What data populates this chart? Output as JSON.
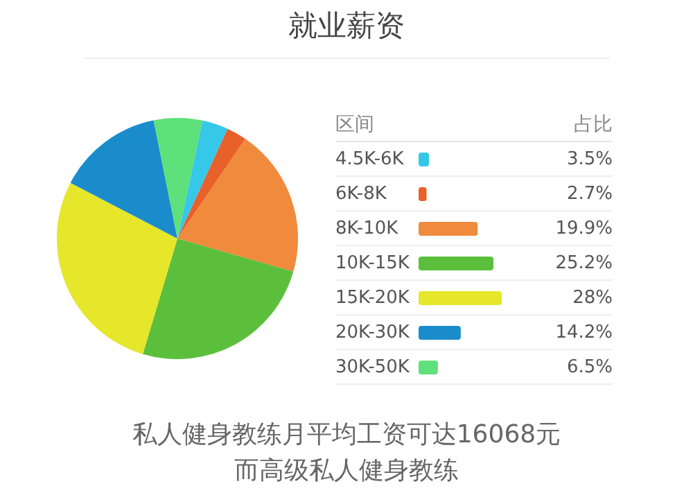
{
  "chart_data": {
    "type": "pie",
    "title": "就业薪资",
    "legend_title": "区间",
    "legend": "right",
    "categories": [
      "4.5K-6K",
      "6K-8K",
      "8K-10K",
      "10K-15K",
      "15K-20K",
      "20K-30K",
      "30K-50K"
    ],
    "values": [
      3.5,
      2.7,
      19.9,
      25.2,
      28,
      14.2,
      6.5
    ],
    "value_labels": [
      "3.5%",
      "2.7%",
      "19.9%",
      "25.2%",
      "28%",
      "14.2%",
      "6.5%"
    ],
    "colors": [
      "#35c8e8",
      "#e8602a",
      "#f08a3c",
      "#5cbf3c",
      "#e6e62a",
      "#1a8ccc",
      "#5ee07a"
    ],
    "annotations": [
      "占比",
      "私人健身教练月平均工资可达16068元",
      "而高级私人健身教练"
    ]
  }
}
